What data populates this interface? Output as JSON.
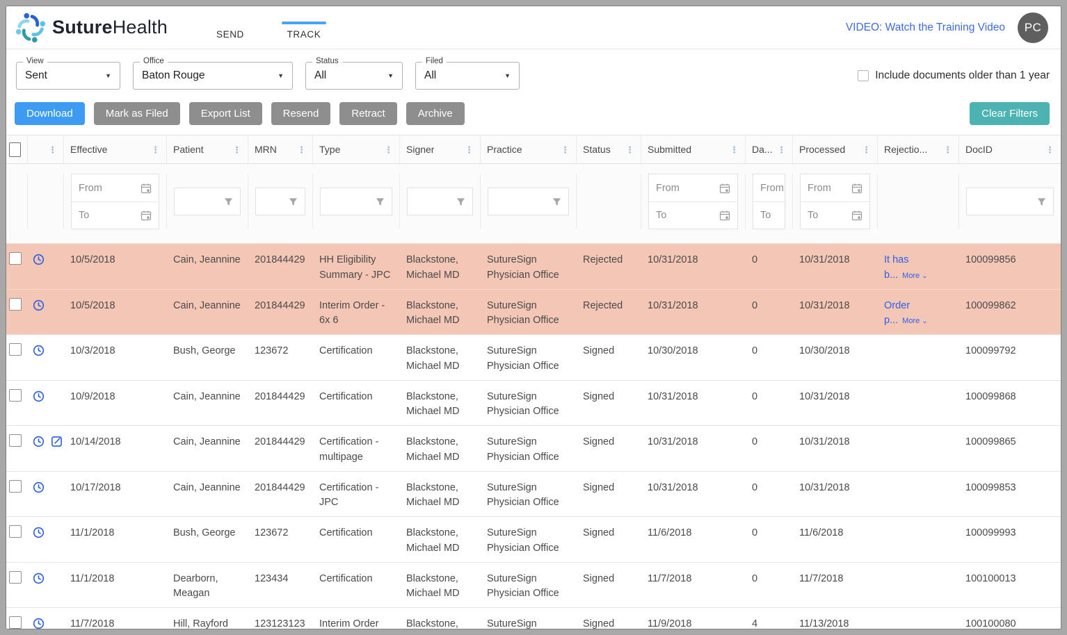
{
  "icons": {
    "kebab": "⋮",
    "caret_down": "▼",
    "chevron_down": "⌄"
  },
  "colors": {
    "accent_blue": "#3e9bf4",
    "teal": "#4cb2b2",
    "link_blue": "#3c6be0",
    "rejected_row_bg": "#f4c6b6",
    "icon_blue": "#2b5ce0",
    "gray_button": "#8e8e8e",
    "tab_indicator": "#4aa3f2"
  },
  "header": {
    "brand_bold": "Suture",
    "brand_light": "Health",
    "tabs": [
      {
        "label": "SEND",
        "active": false
      },
      {
        "label": "TRACK",
        "active": true
      }
    ],
    "video_link": "VIDEO: Watch the Training Video",
    "avatar_initials": "PC"
  },
  "filterbar": {
    "dropdowns": [
      {
        "label": "View",
        "value": "Sent"
      },
      {
        "label": "Office",
        "value": "Baton Rouge"
      },
      {
        "label": "Status",
        "value": "All"
      },
      {
        "label": "Filed",
        "value": "All"
      }
    ],
    "include_older_label": "Include documents older than 1 year",
    "include_older_checked": false
  },
  "toolbar": {
    "download": "Download",
    "mark_as_filed": "Mark as Filed",
    "export_list": "Export List",
    "resend": "Resend",
    "retract": "Retract",
    "archive": "Archive",
    "clear_filters": "Clear Filters"
  },
  "table": {
    "filter_labels": {
      "from": "From",
      "to": "To"
    },
    "columns": [
      {
        "key": "effective",
        "label": "Effective",
        "filter": "daterange"
      },
      {
        "key": "patient",
        "label": "Patient",
        "filter": "text"
      },
      {
        "key": "mrn",
        "label": "MRN",
        "filter": "text"
      },
      {
        "key": "type",
        "label": "Type",
        "filter": "text"
      },
      {
        "key": "signer",
        "label": "Signer",
        "filter": "text"
      },
      {
        "key": "practice",
        "label": "Practice",
        "filter": "text"
      },
      {
        "key": "status",
        "label": "Status",
        "filter": "none"
      },
      {
        "key": "submitted",
        "label": "Submitted",
        "filter": "daterange"
      },
      {
        "key": "days",
        "label": "Da...",
        "filter": "fromto"
      },
      {
        "key": "processed",
        "label": "Processed",
        "filter": "daterange"
      },
      {
        "key": "rejection",
        "label": "Rejectio...",
        "filter": "none"
      },
      {
        "key": "docid",
        "label": "DocID",
        "filter": "text"
      }
    ],
    "rows": [
      {
        "effective": "10/5/2018",
        "patient": "Cain, Jeannine",
        "mrn": "201844429",
        "type": "HH Eligibility Summary - JPC",
        "signer": "Blackstone, Michael MD",
        "practice": "SutureSign Physician Office",
        "status": "Rejected",
        "submitted": "10/31/2018",
        "days": "0",
        "processed": "10/31/2018",
        "rejection": "It has b...",
        "more_label": "More",
        "docid": "100099856",
        "rejected": true,
        "has_edit_icon": false
      },
      {
        "effective": "10/5/2018",
        "patient": "Cain, Jeannine",
        "mrn": "201844429",
        "type": "Interim Order - 6x 6",
        "signer": "Blackstone, Michael MD",
        "practice": "SutureSign Physician Office",
        "status": "Rejected",
        "submitted": "10/31/2018",
        "days": "0",
        "processed": "10/31/2018",
        "rejection": "Order p...",
        "more_label": "More",
        "docid": "100099862",
        "rejected": true,
        "has_edit_icon": false
      },
      {
        "effective": "10/3/2018",
        "patient": "Bush, George",
        "mrn": "123672",
        "type": "Certification",
        "signer": "Blackstone, Michael MD",
        "practice": "SutureSign Physician Office",
        "status": "Signed",
        "submitted": "10/30/2018",
        "days": "0",
        "processed": "10/30/2018",
        "rejection": "",
        "more_label": "",
        "docid": "100099792",
        "rejected": false,
        "has_edit_icon": false
      },
      {
        "effective": "10/9/2018",
        "patient": "Cain, Jeannine",
        "mrn": "201844429",
        "type": "Certification",
        "signer": "Blackstone, Michael MD",
        "practice": "SutureSign Physician Office",
        "status": "Signed",
        "submitted": "10/31/2018",
        "days": "0",
        "processed": "10/31/2018",
        "rejection": "",
        "more_label": "",
        "docid": "100099868",
        "rejected": false,
        "has_edit_icon": false
      },
      {
        "effective": "10/14/2018",
        "patient": "Cain, Jeannine",
        "mrn": "201844429",
        "type": "Certification - multipage",
        "signer": "Blackstone, Michael MD",
        "practice": "SutureSign Physician Office",
        "status": "Signed",
        "submitted": "10/31/2018",
        "days": "0",
        "processed": "10/31/2018",
        "rejection": "",
        "more_label": "",
        "docid": "100099865",
        "rejected": false,
        "has_edit_icon": true
      },
      {
        "effective": "10/17/2018",
        "patient": "Cain, Jeannine",
        "mrn": "201844429",
        "type": "Certification - JPC",
        "signer": "Blackstone, Michael MD",
        "practice": "SutureSign Physician Office",
        "status": "Signed",
        "submitted": "10/31/2018",
        "days": "0",
        "processed": "10/31/2018",
        "rejection": "",
        "more_label": "",
        "docid": "100099853",
        "rejected": false,
        "has_edit_icon": false
      },
      {
        "effective": "11/1/2018",
        "patient": "Bush, George",
        "mrn": "123672",
        "type": "Certification",
        "signer": "Blackstone, Michael MD",
        "practice": "SutureSign Physician Office",
        "status": "Signed",
        "submitted": "11/6/2018",
        "days": "0",
        "processed": "11/6/2018",
        "rejection": "",
        "more_label": "",
        "docid": "100099993",
        "rejected": false,
        "has_edit_icon": false
      },
      {
        "effective": "11/1/2018",
        "patient": "Dearborn, Meagan",
        "mrn": "123434",
        "type": "Certification",
        "signer": "Blackstone, Michael MD",
        "practice": "SutureSign Physician Office",
        "status": "Signed",
        "submitted": "11/7/2018",
        "days": "0",
        "processed": "11/7/2018",
        "rejection": "",
        "more_label": "",
        "docid": "100100013",
        "rejected": false,
        "has_edit_icon": false
      },
      {
        "effective": "11/7/2018",
        "patient": "Hill, Rayford",
        "mrn": "123123123",
        "type": "Interim Order",
        "signer": "Blackstone, Michael MD",
        "practice": "SutureSign Physician Office",
        "status": "Signed",
        "submitted": "11/9/2018",
        "days": "4",
        "processed": "11/13/2018",
        "rejection": "",
        "more_label": "",
        "docid": "100100080",
        "rejected": false,
        "has_edit_icon": false
      }
    ]
  }
}
